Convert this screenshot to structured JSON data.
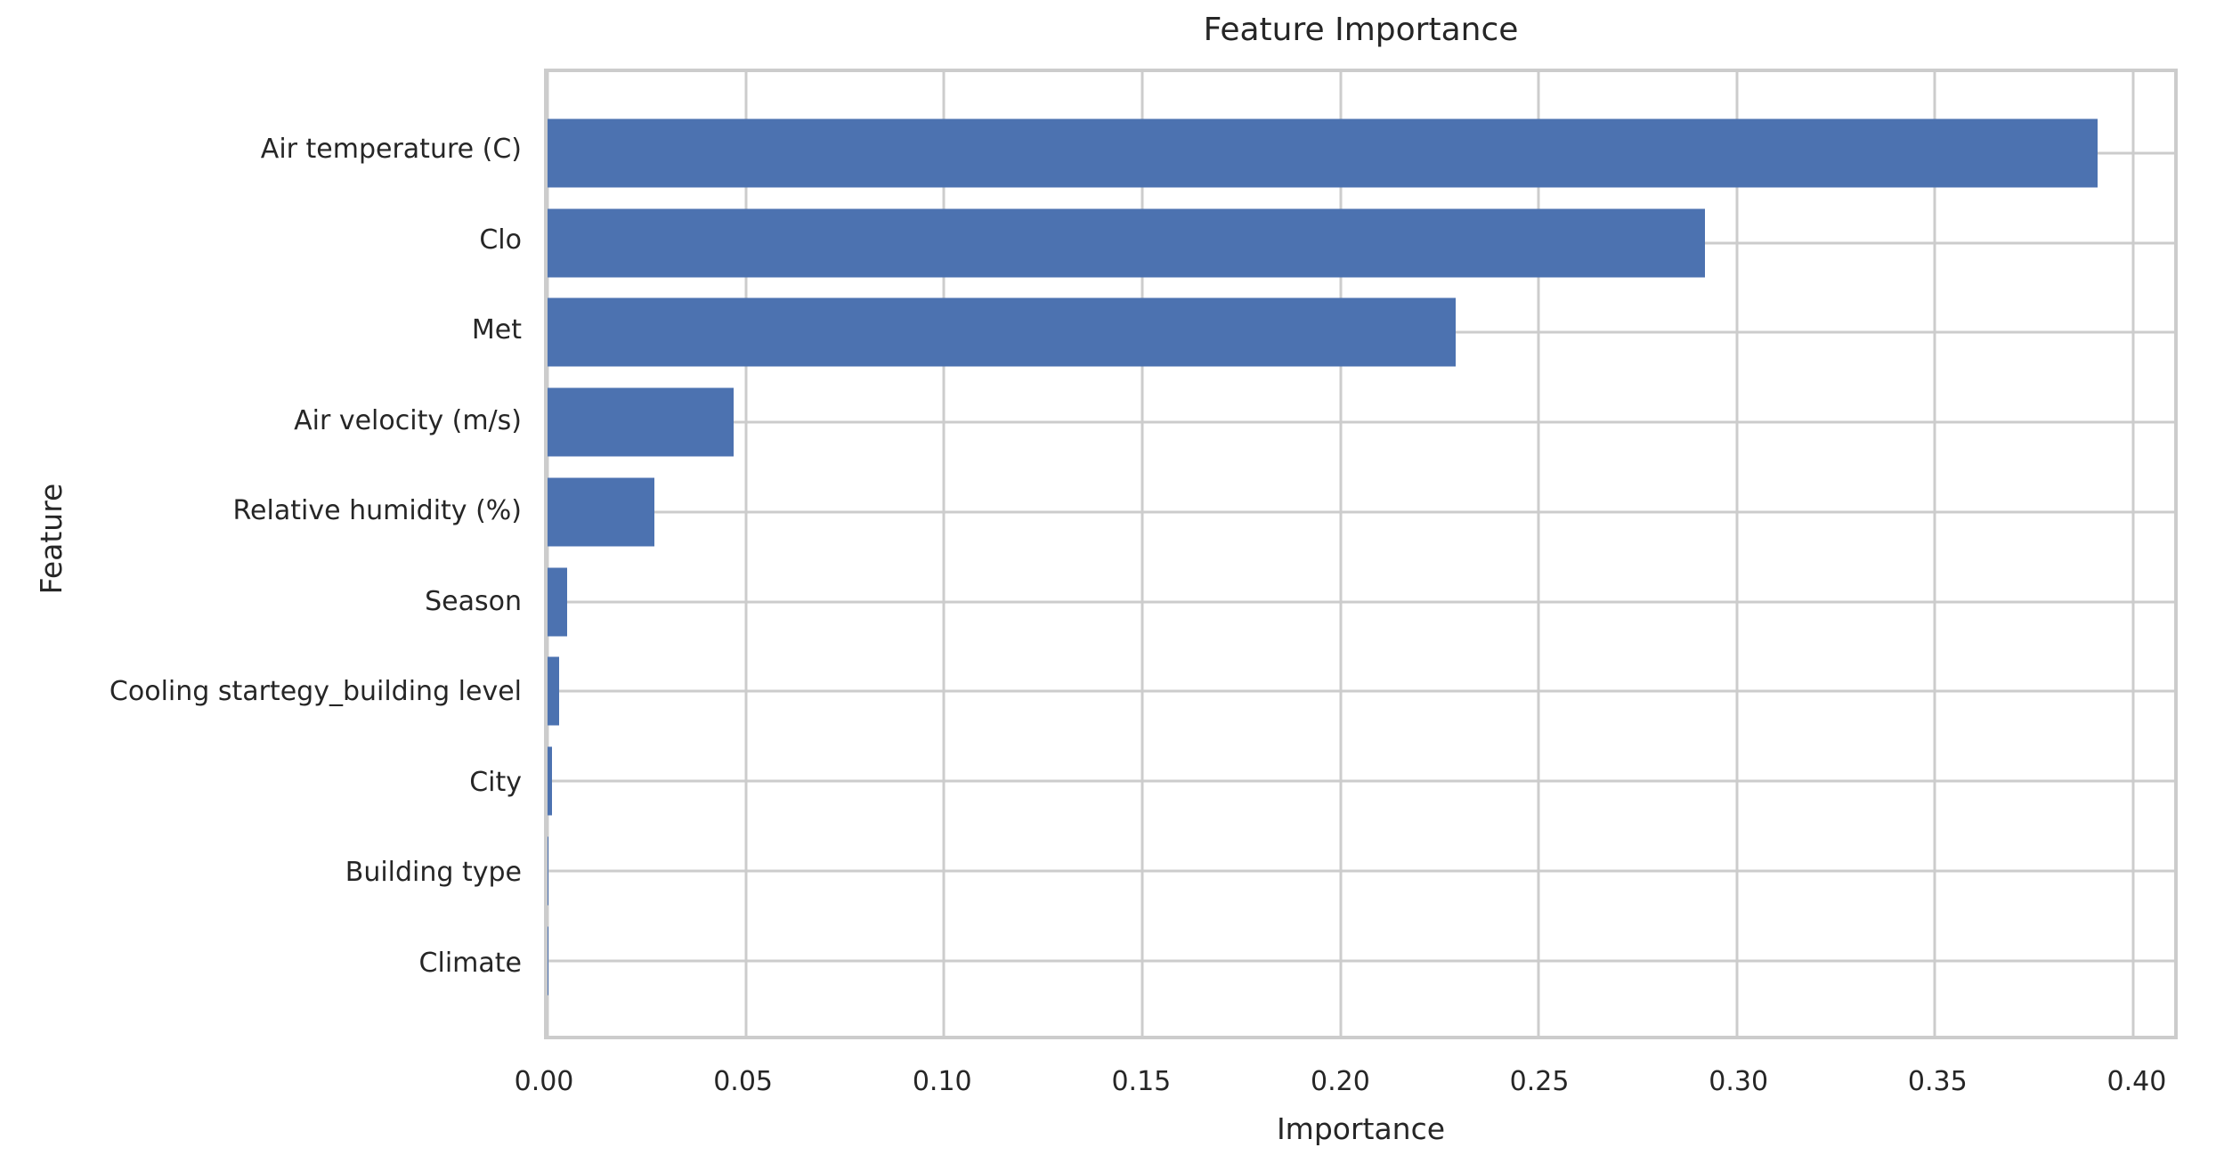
{
  "chart_data": {
    "type": "bar",
    "orientation": "horizontal",
    "title": "Feature Importance",
    "xlabel": "Importance",
    "ylabel": "Feature",
    "categories": [
      "Air temperature (C)",
      "Clo",
      "Met",
      "Air velocity (m/s)",
      "Relative humidity (%)",
      "Season",
      "Cooling startegy_building level",
      "City",
      "Building type",
      "Climate"
    ],
    "values": [
      0.391,
      0.292,
      0.229,
      0.047,
      0.027,
      0.005,
      0.003,
      0.0012,
      0.0002,
      0.0001
    ],
    "xticks": [
      {
        "value": 0.0,
        "label": "0.00"
      },
      {
        "value": 0.05,
        "label": "0.05"
      },
      {
        "value": 0.1,
        "label": "0.10"
      },
      {
        "value": 0.15,
        "label": "0.15"
      },
      {
        "value": 0.2,
        "label": "0.20"
      },
      {
        "value": 0.25,
        "label": "0.25"
      },
      {
        "value": 0.3,
        "label": "0.30"
      },
      {
        "value": 0.35,
        "label": "0.35"
      },
      {
        "value": 0.4,
        "label": "0.40"
      }
    ],
    "xlim": [
      0.0,
      0.4103
    ],
    "grid": true,
    "legend": null,
    "bar_color": "#4C72B0",
    "grid_color": "#CCCCCC",
    "text_color": "#262626"
  }
}
